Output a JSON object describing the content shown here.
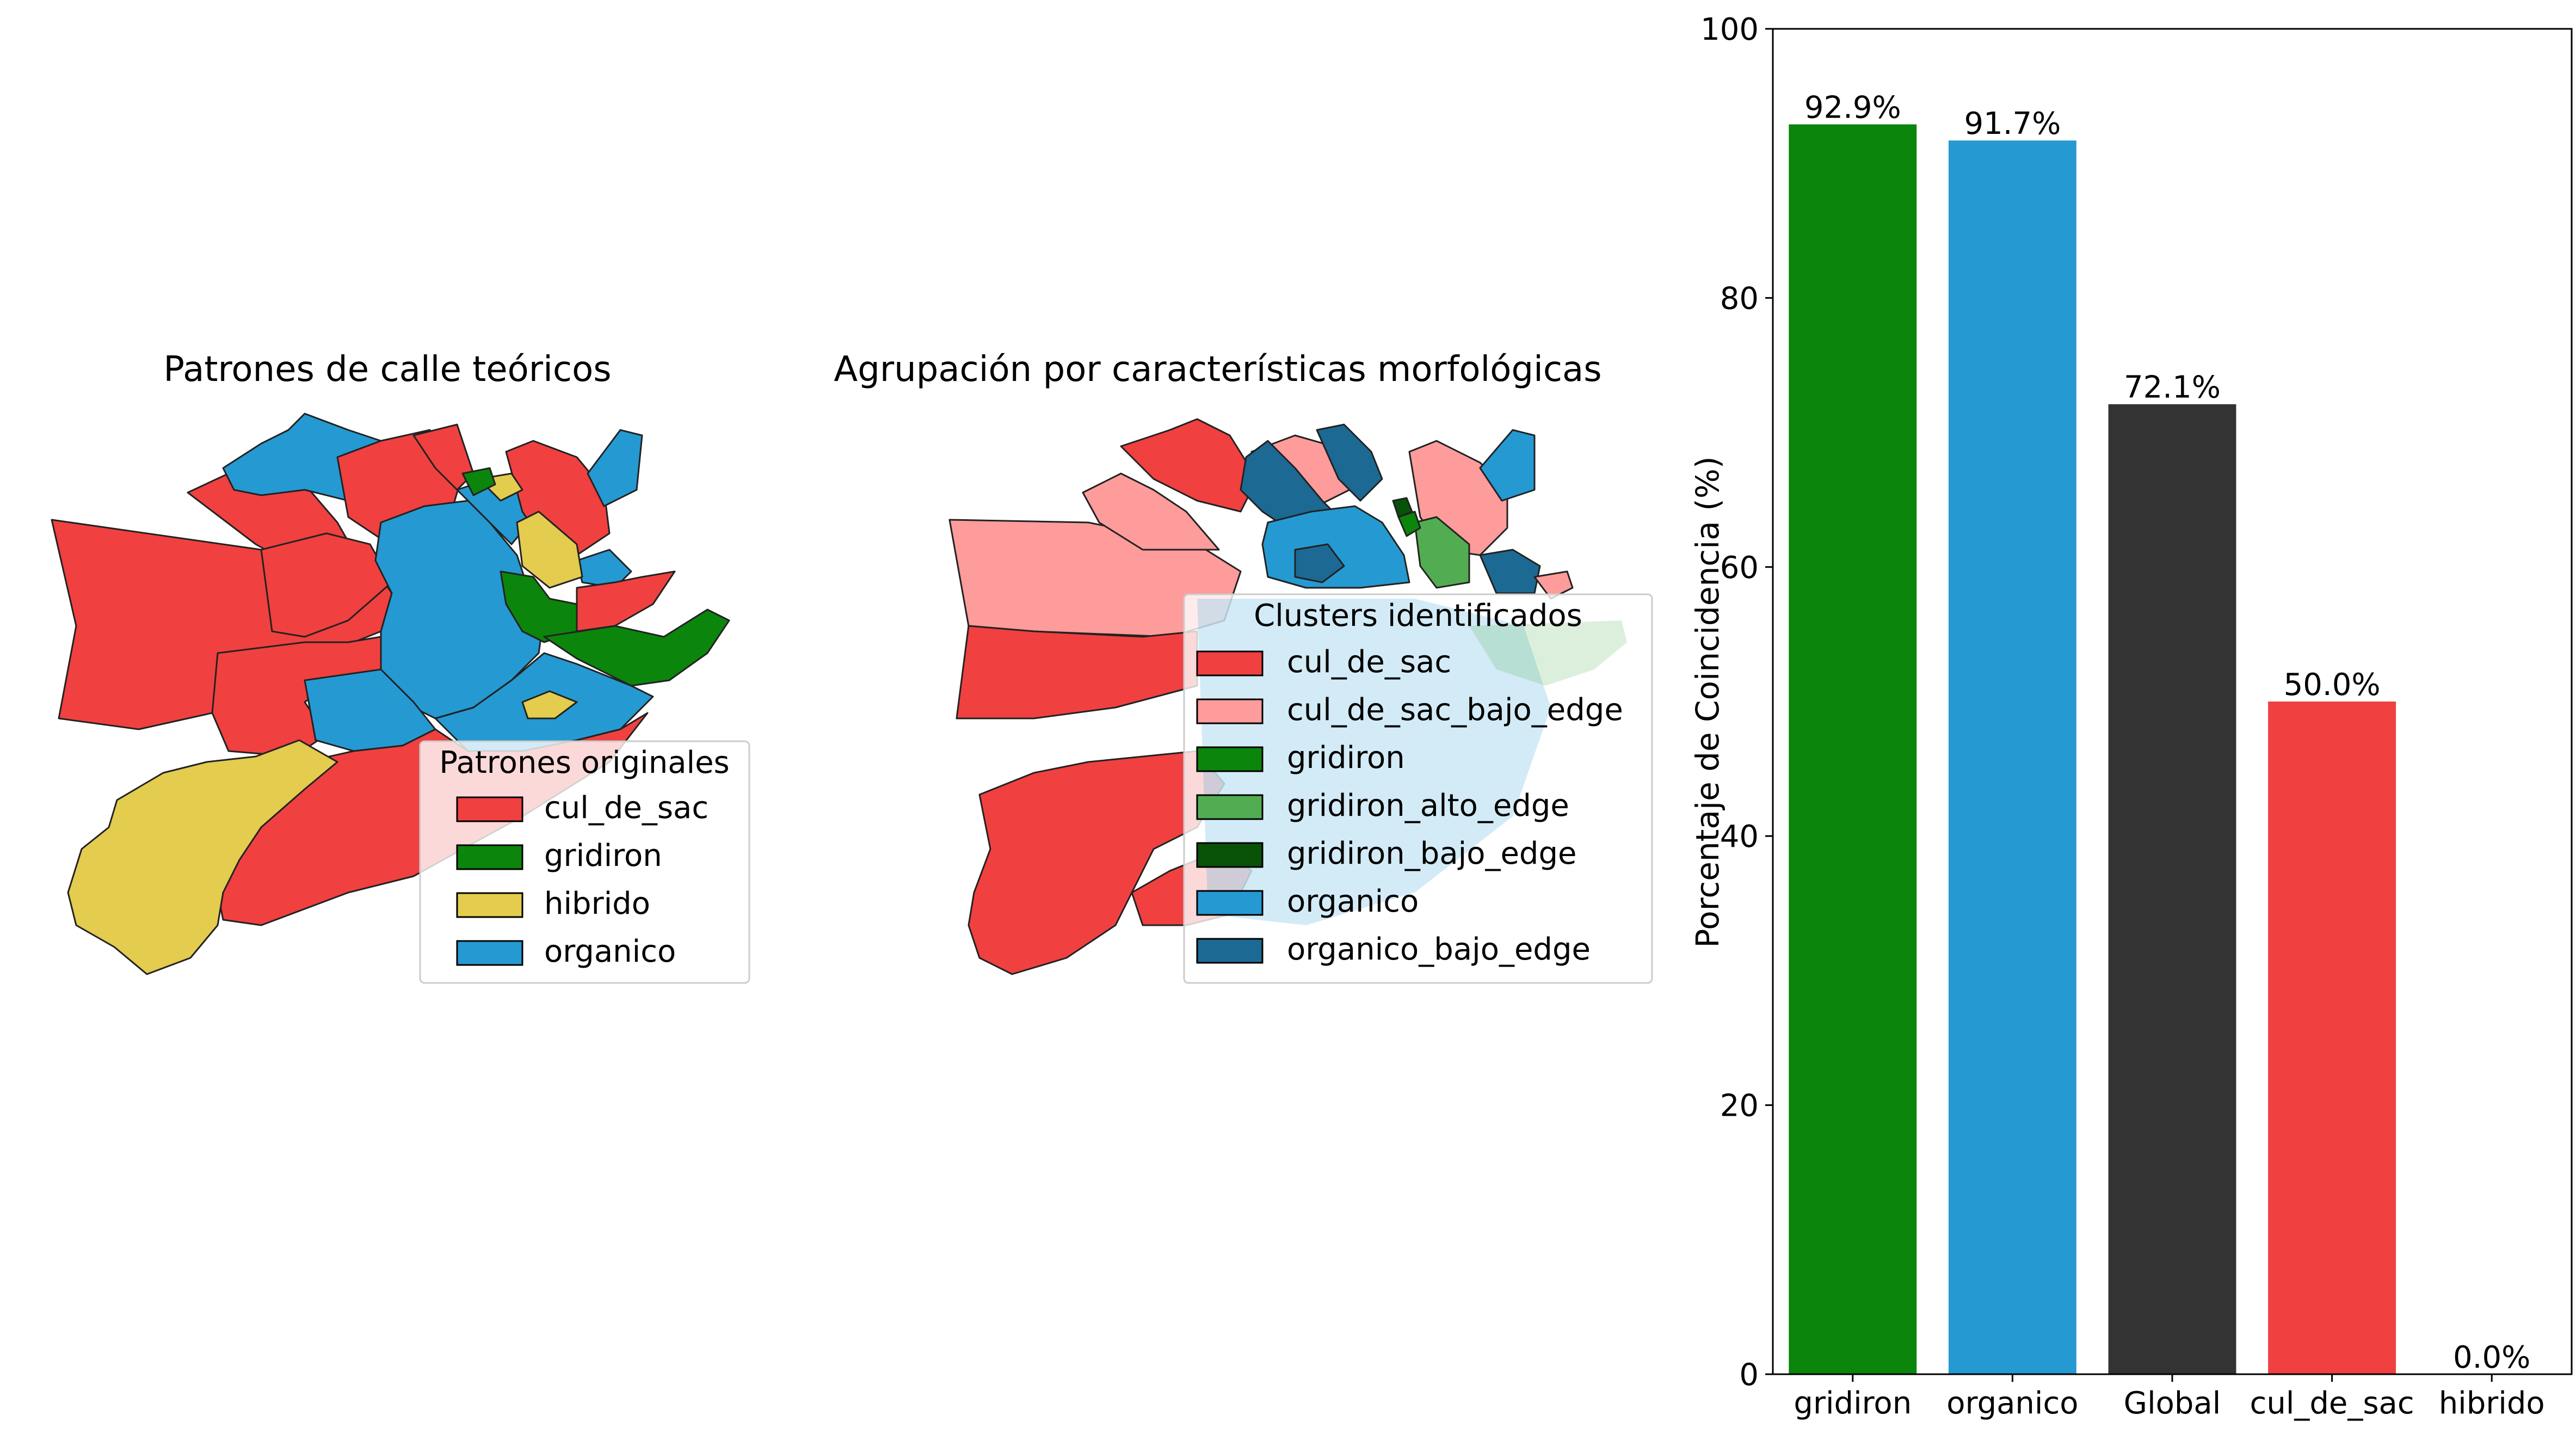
{
  "colors": {
    "cul_de_sac": "#f14040",
    "cul_de_sac_bajo_edge": "#fe9b9b",
    "gridiron": "#0b850b",
    "gridiron_alto_edge": "#52ad52",
    "gridiron_bajo_edge": "#075207",
    "hibrido": "#e3cc4e",
    "organico": "#2599d2",
    "organico_bajo_edge": "#1c6993",
    "global": "#333333"
  },
  "map1": {
    "title": "Patrones de calle teóricos",
    "legend_title": "Patrones originales",
    "legend": [
      {
        "label": "cul_de_sac",
        "color": "#f14040"
      },
      {
        "label": "gridiron",
        "color": "#0b850b"
      },
      {
        "label": "hibrido",
        "color": "#e3cc4e"
      },
      {
        "label": "organico",
        "color": "#2599d2"
      }
    ]
  },
  "map2": {
    "title": "Agrupación por características morfológicas",
    "legend_title": "Clusters identificados",
    "legend": [
      {
        "label": "cul_de_sac",
        "color": "#f14040"
      },
      {
        "label": "cul_de_sac_bajo_edge",
        "color": "#fe9b9b"
      },
      {
        "label": "gridiron",
        "color": "#0b850b"
      },
      {
        "label": "gridiron_alto_edge",
        "color": "#52ad52"
      },
      {
        "label": "gridiron_bajo_edge",
        "color": "#075207"
      },
      {
        "label": "organico",
        "color": "#2599d2"
      },
      {
        "label": "organico_bajo_edge",
        "color": "#1c6993"
      }
    ]
  },
  "chart_data": {
    "type": "bar",
    "categories": [
      "gridiron",
      "organico",
      "Global",
      "cul_de_sac",
      "hibrido"
    ],
    "values": [
      92.9,
      91.7,
      72.1,
      50.0,
      0.0
    ],
    "value_labels": [
      "92.9%",
      "91.7%",
      "72.1%",
      "50.0%",
      "0.0%"
    ],
    "bar_colors": [
      "#0b850b",
      "#2599d2",
      "#333333",
      "#f14040",
      "#e3cc4e"
    ],
    "xlabel": "",
    "ylabel": "Porcentaje de Coincidencia (%)",
    "ylim": [
      0,
      100
    ],
    "yticks": [
      0,
      20,
      40,
      60,
      80,
      100
    ],
    "grid": false
  }
}
